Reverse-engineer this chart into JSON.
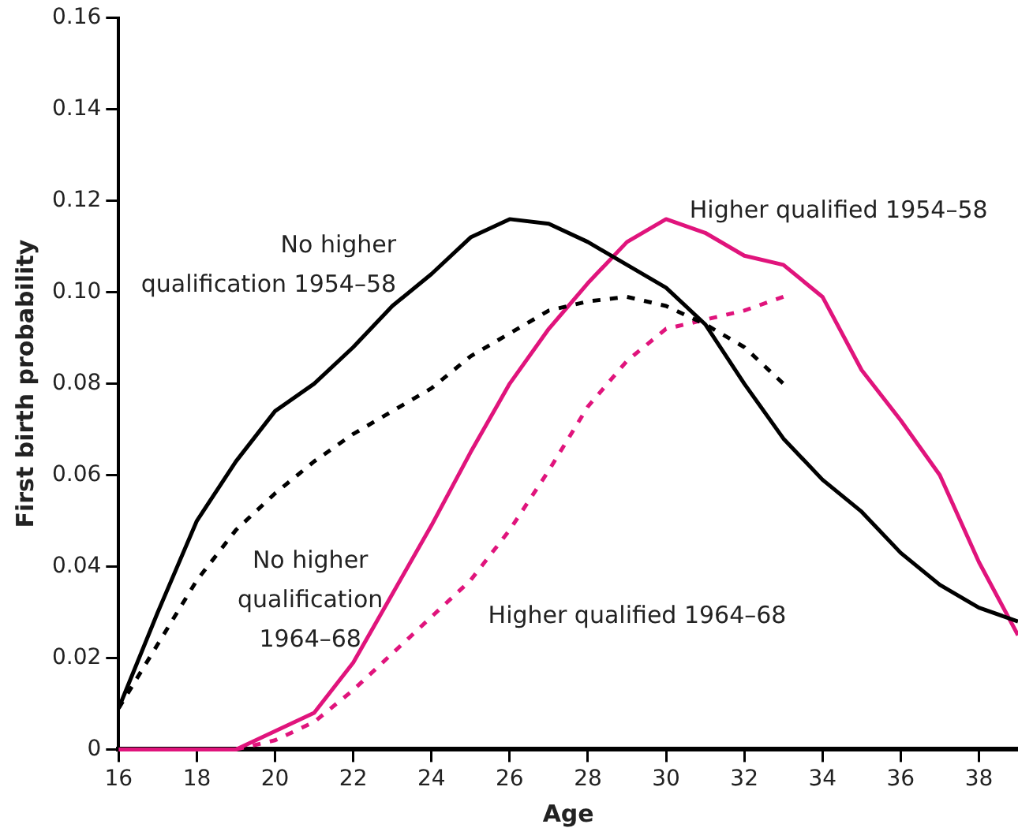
{
  "chart_data": {
    "type": "line",
    "xlabel": "Age",
    "ylabel": "First birth probability",
    "x": [
      16,
      17,
      18,
      19,
      20,
      21,
      22,
      23,
      24,
      25,
      26,
      27,
      28,
      29,
      30,
      31,
      32,
      33,
      34,
      35,
      36,
      37,
      38,
      39
    ],
    "xlim": [
      16,
      39
    ],
    "xticks": [
      16,
      18,
      20,
      22,
      24,
      26,
      28,
      30,
      32,
      34,
      36,
      38
    ],
    "ylim": [
      0,
      0.16
    ],
    "yticks": [
      0,
      0.02,
      0.04,
      0.06,
      0.08,
      {
        "value": 0.1,
        "label": "0.10"
      },
      0.12,
      0.14,
      0.16
    ],
    "grid": false,
    "legend": false,
    "marker": "none",
    "series": [
      {
        "name": "No higher qualification 1954–58",
        "color": "#000000",
        "line_style": "solid",
        "values": [
          0.009,
          0.03,
          0.05,
          0.063,
          0.074,
          0.08,
          0.088,
          0.097,
          0.104,
          0.112,
          0.116,
          0.115,
          0.111,
          0.106,
          0.101,
          0.093,
          0.08,
          0.068,
          0.059,
          0.052,
          0.043,
          0.036,
          0.031,
          0.028
        ]
      },
      {
        "name": "No higher qualification 1964–68",
        "color": "#000000",
        "line_style": "dashed",
        "values": [
          0.009,
          0.023,
          0.037,
          0.048,
          0.056,
          0.063,
          0.069,
          0.074,
          0.079,
          0.086,
          0.091,
          0.096,
          0.098,
          0.099,
          0.097,
          0.093,
          0.088,
          0.08,
          null,
          null,
          null,
          null,
          null,
          null
        ]
      },
      {
        "name": "Higher qualified 1954–58",
        "color": "#e0147c",
        "line_style": "solid",
        "values": [
          0,
          0,
          0,
          0,
          0.004,
          0.008,
          0.019,
          0.034,
          0.049,
          0.065,
          0.08,
          0.092,
          0.102,
          0.111,
          0.116,
          0.113,
          0.108,
          0.106,
          0.099,
          0.083,
          0.072,
          0.06,
          0.041,
          0.025
        ]
      },
      {
        "name": "Higher qualified 1964–68",
        "color": "#e0147c",
        "line_style": "dashed",
        "values": [
          null,
          null,
          null,
          0,
          0.002,
          0.006,
          0.013,
          0.021,
          0.029,
          0.037,
          0.048,
          0.061,
          0.075,
          0.085,
          0.092,
          0.094,
          0.096,
          0.099,
          null,
          null,
          null,
          null,
          null,
          null
        ]
      }
    ]
  }
}
